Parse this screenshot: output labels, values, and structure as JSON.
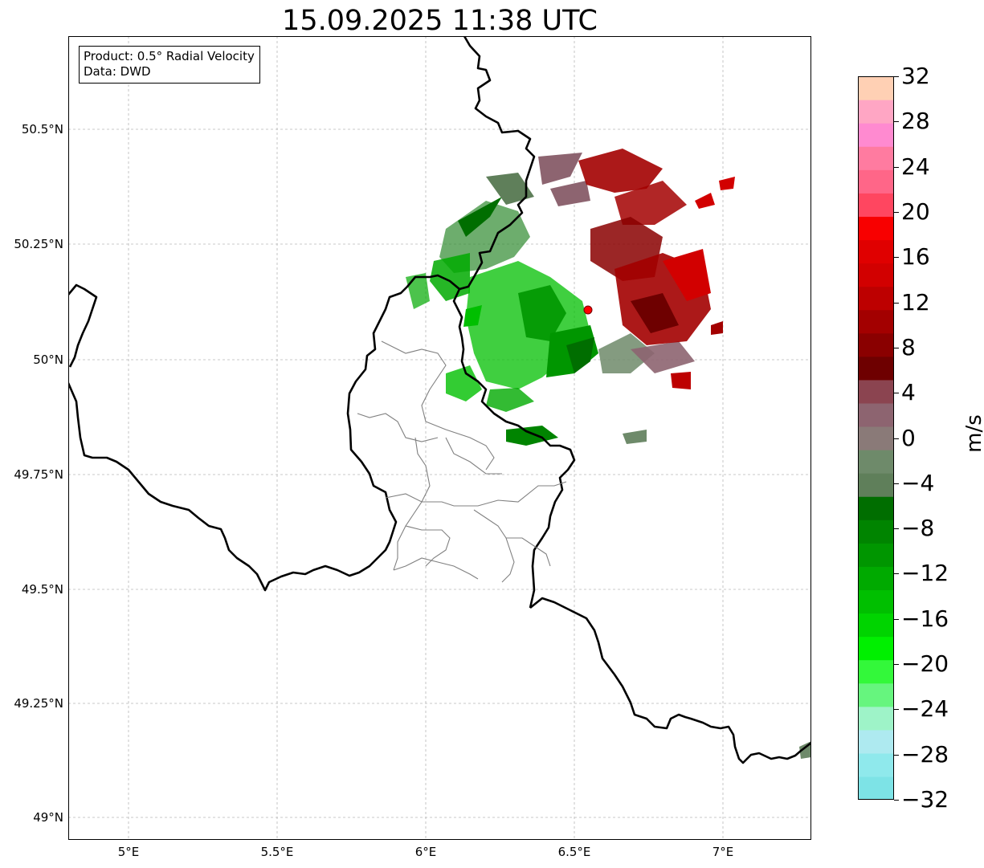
{
  "title": "15.09.2025 11:38 UTC",
  "info": {
    "product": "Product: 0.5° Radial Velocity",
    "data": "Data: DWD"
  },
  "lat_labels": [
    "50.5°N",
    "50.25°N",
    "50°N",
    "49.75°N",
    "49.5°N",
    "49.25°N",
    "49°N"
  ],
  "lon_labels": [
    "5°E",
    "5.5°E",
    "6°E",
    "6.5°E",
    "7°E"
  ],
  "colorbar": {
    "unit": "m/s",
    "min": -32,
    "max": 32,
    "tick_labels": [
      "32",
      "28",
      "24",
      "20",
      "16",
      "12",
      "8",
      "4",
      "0",
      "−4",
      "−8",
      "−12",
      "−16",
      "−20",
      "−24",
      "−28",
      "−32"
    ],
    "colors_bottom_to_top": [
      "#7de3e6",
      "#8fe9ec",
      "#aeeaf0",
      "#9ef3c8",
      "#66f57e",
      "#33f83a",
      "#00f000",
      "#00d400",
      "#00bf00",
      "#00aa00",
      "#009600",
      "#008400",
      "#006e00",
      "#5f7f5a",
      "#6e8a6a",
      "#8a7a78",
      "#8d6470",
      "#8b4450",
      "#6e0000",
      "#8a0000",
      "#a30000",
      "#bd0000",
      "#d20000",
      "#e00000",
      "#f80000",
      "#ff4660",
      "#ff6688",
      "#ff7ba0",
      "#ff8ad0",
      "#ffa6c4",
      "#ffd0b4"
    ]
  },
  "radar_marker_color": "#ff0000"
}
